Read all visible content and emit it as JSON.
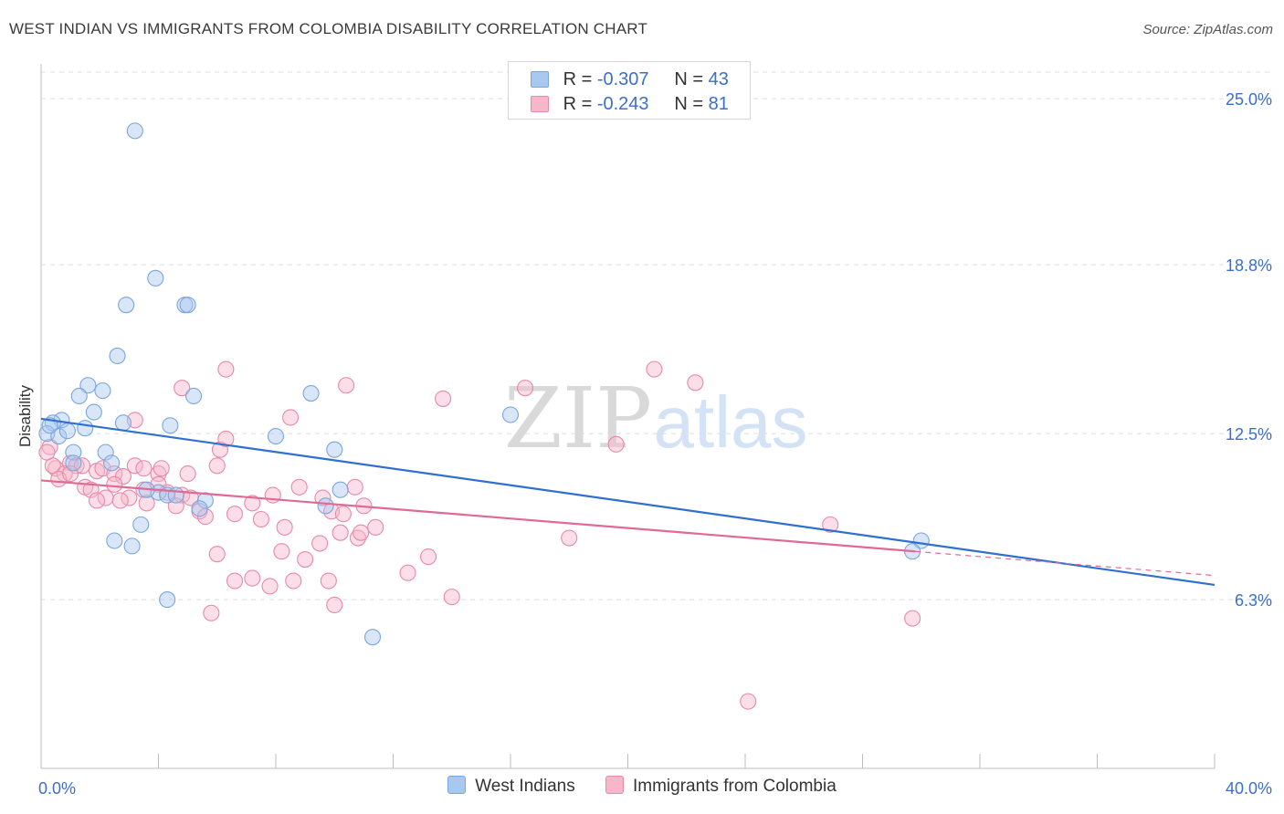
{
  "title": "WEST INDIAN VS IMMIGRANTS FROM COLOMBIA DISABILITY CORRELATION CHART",
  "source": "Source: ZipAtlas.com",
  "watermark": {
    "zip": "ZIP",
    "atlas": "atlas"
  },
  "legend_top": {
    "rows": [
      {
        "r_label": "R =",
        "r_value": "-0.307",
        "n_label": "N =",
        "n_value": "43"
      },
      {
        "r_label": "R =",
        "r_value": "-0.243",
        "n_label": "N =",
        "n_value": "81"
      }
    ]
  },
  "colors": {
    "blue_fill": "#a9c8f0",
    "blue_stroke": "#7aa6dc",
    "blue_line": "#2f6fd0",
    "pink_fill": "#f7b6ca",
    "pink_stroke": "#e889a8",
    "pink_line": "#e06a95",
    "axis_text": "#3b6fc8",
    "grid": "#dcdcdc"
  },
  "chart_data": {
    "type": "scatter",
    "title": "WEST INDIAN VS IMMIGRANTS FROM COLOMBIA DISABILITY CORRELATION CHART",
    "xlabel": "",
    "ylabel": "Disability",
    "xlim": [
      0,
      40
    ],
    "ylim": [
      0,
      26.3
    ],
    "x_tick_labels": [
      "0.0%",
      "40.0%"
    ],
    "y_ticks": [
      6.3,
      12.5,
      18.8,
      25.0
    ],
    "y_tick_labels": [
      "6.3%",
      "12.5%",
      "18.8%",
      "25.0%"
    ],
    "legend": "bottom-center",
    "grid": true,
    "series": [
      {
        "name": "West Indians",
        "color": "blue",
        "trend": {
          "x": [
            0,
            40
          ],
          "y": [
            13.05,
            6.85
          ]
        },
        "points": [
          [
            3.2,
            23.8
          ],
          [
            3.9,
            18.3
          ],
          [
            2.9,
            17.3
          ],
          [
            4.9,
            17.3
          ],
          [
            5.0,
            17.3
          ],
          [
            2.6,
            15.4
          ],
          [
            1.6,
            14.3
          ],
          [
            2.1,
            14.1
          ],
          [
            1.3,
            13.9
          ],
          [
            5.2,
            13.9
          ],
          [
            9.2,
            14.0
          ],
          [
            1.8,
            13.3
          ],
          [
            0.7,
            13.0
          ],
          [
            0.4,
            12.9
          ],
          [
            1.5,
            12.7
          ],
          [
            2.8,
            12.9
          ],
          [
            4.4,
            12.8
          ],
          [
            0.2,
            12.5
          ],
          [
            0.6,
            12.4
          ],
          [
            8.0,
            12.4
          ],
          [
            0.9,
            12.6
          ],
          [
            16.0,
            13.2
          ],
          [
            2.2,
            11.8
          ],
          [
            2.4,
            11.4
          ],
          [
            10.0,
            11.9
          ],
          [
            1.1,
            11.8
          ],
          [
            4.0,
            10.3
          ],
          [
            4.3,
            10.2
          ],
          [
            4.6,
            10.2
          ],
          [
            3.6,
            10.4
          ],
          [
            5.6,
            10.0
          ],
          [
            10.2,
            10.4
          ],
          [
            9.7,
            9.8
          ],
          [
            3.4,
            9.1
          ],
          [
            5.4,
            9.7
          ],
          [
            1.1,
            11.4
          ],
          [
            2.5,
            8.5
          ],
          [
            3.1,
            8.3
          ],
          [
            4.3,
            6.3
          ],
          [
            11.3,
            4.9
          ],
          [
            30.0,
            8.5
          ],
          [
            29.7,
            8.1
          ],
          [
            0.3,
            12.8
          ]
        ]
      },
      {
        "name": "Immigrants from Colombia",
        "color": "pink",
        "trend": {
          "x": [
            0,
            29.8
          ],
          "y": [
            10.75,
            8.1
          ]
        },
        "trend_dashed": {
          "x": [
            29.8,
            40
          ],
          "y": [
            8.1,
            7.2
          ]
        },
        "points": [
          [
            0.3,
            12.0
          ],
          [
            0.5,
            11.2
          ],
          [
            0.4,
            11.3
          ],
          [
            1.0,
            11.4
          ],
          [
            1.2,
            11.3
          ],
          [
            0.8,
            11.0
          ],
          [
            1.4,
            11.3
          ],
          [
            1.9,
            11.1
          ],
          [
            2.1,
            11.2
          ],
          [
            2.5,
            11.0
          ],
          [
            2.8,
            10.9
          ],
          [
            3.2,
            11.3
          ],
          [
            3.5,
            11.2
          ],
          [
            4.0,
            11.0
          ],
          [
            4.1,
            11.2
          ],
          [
            1.5,
            10.5
          ],
          [
            1.7,
            10.4
          ],
          [
            2.5,
            10.6
          ],
          [
            2.2,
            10.1
          ],
          [
            3.0,
            10.1
          ],
          [
            3.5,
            10.4
          ],
          [
            4.0,
            10.6
          ],
          [
            4.3,
            10.3
          ],
          [
            4.8,
            10.2
          ],
          [
            5.1,
            10.1
          ],
          [
            5.0,
            11.0
          ],
          [
            5.4,
            9.6
          ],
          [
            6.0,
            11.3
          ],
          [
            6.1,
            11.9
          ],
          [
            6.3,
            12.3
          ],
          [
            3.2,
            13.0
          ],
          [
            4.8,
            14.2
          ],
          [
            6.3,
            14.9
          ],
          [
            8.5,
            13.1
          ],
          [
            10.4,
            14.3
          ],
          [
            13.7,
            13.8
          ],
          [
            16.5,
            14.2
          ],
          [
            19.6,
            12.1
          ],
          [
            20.9,
            14.9
          ],
          [
            22.3,
            14.4
          ],
          [
            7.2,
            9.9
          ],
          [
            7.5,
            9.3
          ],
          [
            7.9,
            10.2
          ],
          [
            8.3,
            9.0
          ],
          [
            8.8,
            10.5
          ],
          [
            9.6,
            10.1
          ],
          [
            9.9,
            9.6
          ],
          [
            10.7,
            10.5
          ],
          [
            11.0,
            9.8
          ],
          [
            11.4,
            9.0
          ],
          [
            6.6,
            9.5
          ],
          [
            5.6,
            9.4
          ],
          [
            6.0,
            8.0
          ],
          [
            6.6,
            7.0
          ],
          [
            7.2,
            7.1
          ],
          [
            7.8,
            6.8
          ],
          [
            8.2,
            8.1
          ],
          [
            8.6,
            7.0
          ],
          [
            9.0,
            7.8
          ],
          [
            9.5,
            8.4
          ],
          [
            10.2,
            8.8
          ],
          [
            10.8,
            8.6
          ],
          [
            10.9,
            8.8
          ],
          [
            12.5,
            7.3
          ],
          [
            13.2,
            7.9
          ],
          [
            14.0,
            6.4
          ],
          [
            10.0,
            6.1
          ],
          [
            5.8,
            5.8
          ],
          [
            18.0,
            8.6
          ],
          [
            26.9,
            9.1
          ],
          [
            29.7,
            5.6
          ],
          [
            24.1,
            2.5
          ],
          [
            9.8,
            7.0
          ],
          [
            1.9,
            10.0
          ],
          [
            2.7,
            10.0
          ],
          [
            3.6,
            9.9
          ],
          [
            4.6,
            9.8
          ],
          [
            0.6,
            10.8
          ],
          [
            1.0,
            11.0
          ],
          [
            10.3,
            9.5
          ],
          [
            0.2,
            11.8
          ]
        ]
      }
    ]
  },
  "bottom_legend": [
    {
      "label": "West Indians",
      "color": "blue"
    },
    {
      "label": "Immigrants from Colombia",
      "color": "pink"
    }
  ]
}
